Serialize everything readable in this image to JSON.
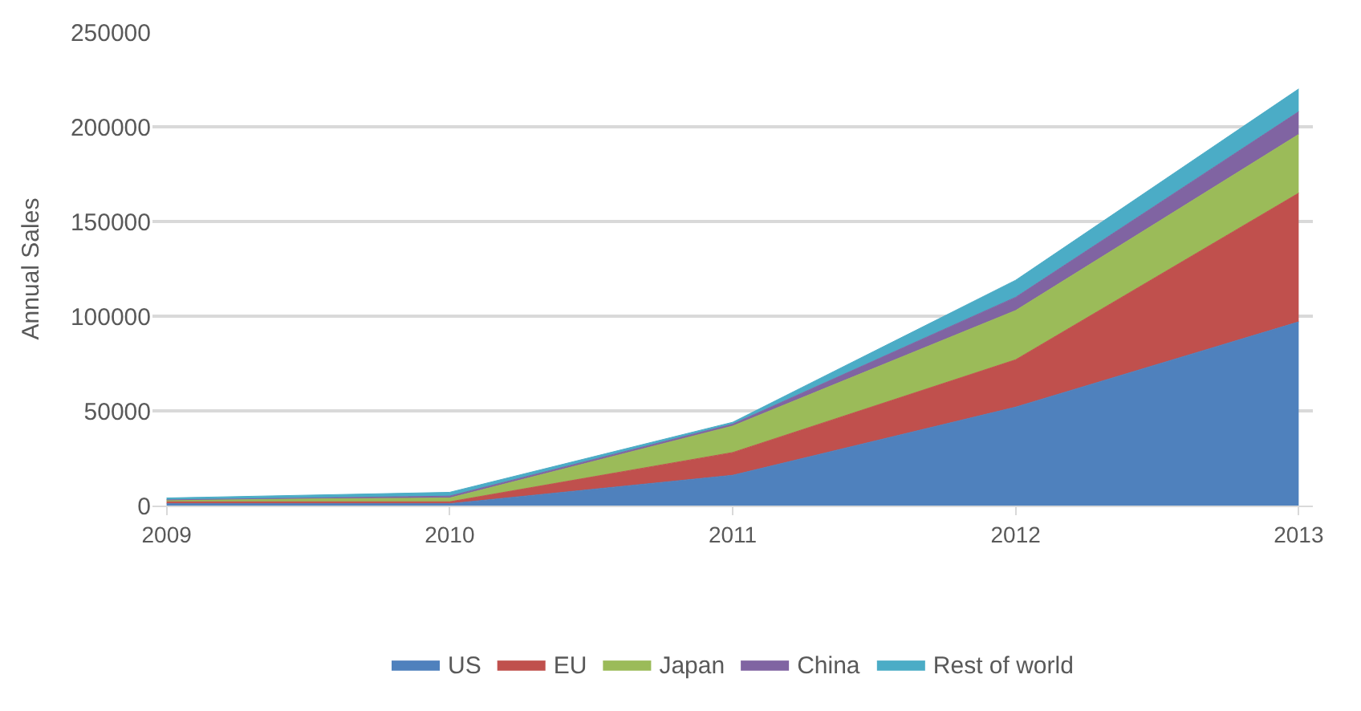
{
  "chart_data": {
    "type": "area",
    "stacked": true,
    "ylabel": "Annual Sales",
    "categories": [
      "2009",
      "2010",
      "2011",
      "2012",
      "2013"
    ],
    "series": [
      {
        "name": "US",
        "color": "#4f81bd",
        "values": [
          1000,
          1000,
          16000,
          52000,
          97000
        ]
      },
      {
        "name": "EU",
        "color": "#c0504d",
        "values": [
          1000,
          1000,
          12000,
          25000,
          68000
        ]
      },
      {
        "name": "Japan",
        "color": "#9bbb59",
        "values": [
          1000,
          2000,
          14000,
          26000,
          31000
        ]
      },
      {
        "name": "China",
        "color": "#8064a2",
        "values": [
          0,
          1000,
          1000,
          7000,
          12000
        ]
      },
      {
        "name": "Rest of world",
        "color": "#4bacc6",
        "values": [
          1000,
          2000,
          1000,
          9000,
          12000
        ]
      }
    ],
    "ylim": [
      0,
      250000
    ],
    "yticks": [
      0,
      50000,
      100000,
      150000,
      200000,
      250000
    ],
    "grid": "y",
    "legend": "bottom"
  }
}
